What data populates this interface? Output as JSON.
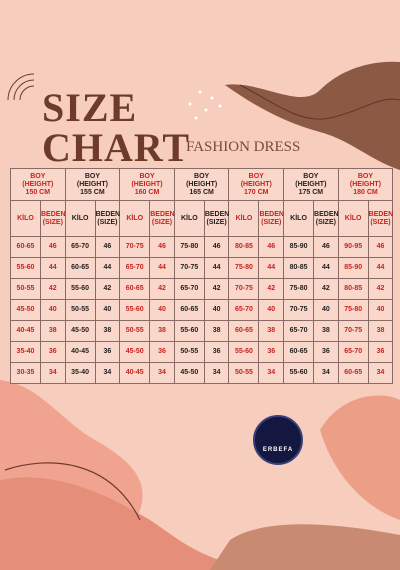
{
  "header": {
    "title_lines": [
      "SIZE",
      "CHART"
    ],
    "subtitle": "FASHION DRESS"
  },
  "table": {
    "groups": [
      {
        "label": "BOY",
        "sub": "(HEIGHT)",
        "height": "150 CM"
      },
      {
        "label": "BOY",
        "sub": "(HEIGHT)",
        "height": "155 CM"
      },
      {
        "label": "BOY",
        "sub": "(HEIGHT)",
        "height": "160 CM"
      },
      {
        "label": "BOY",
        "sub": "(HEIGHT)",
        "height": "165 CM"
      },
      {
        "label": "BOY",
        "sub": "(HEIGHT)",
        "height": "170 CM"
      },
      {
        "label": "BOY",
        "sub": "(HEIGHT)",
        "height": "175 CM"
      },
      {
        "label": "BOY",
        "sub": "(HEIGHT)",
        "height": "180 CM"
      }
    ],
    "columns": {
      "kilo": "KİLO",
      "beden": "BEDEN",
      "size": "(SIZE)"
    },
    "rows": [
      [
        [
          "60-65",
          46
        ],
        [
          "65-70",
          46
        ],
        [
          "70-75",
          46
        ],
        [
          "75-80",
          46
        ],
        [
          "80-85",
          46
        ],
        [
          "85-90",
          46
        ],
        [
          "90-95",
          46
        ]
      ],
      [
        [
          "55-60",
          44
        ],
        [
          "60-65",
          44
        ],
        [
          "65-70",
          44
        ],
        [
          "70-75",
          44
        ],
        [
          "75-80",
          44
        ],
        [
          "80-85",
          44
        ],
        [
          "85-90",
          44
        ]
      ],
      [
        [
          "50-55",
          42
        ],
        [
          "55-60",
          42
        ],
        [
          "60-65",
          42
        ],
        [
          "65-70",
          42
        ],
        [
          "70-75",
          42
        ],
        [
          "75-80",
          42
        ],
        [
          "80-85",
          42
        ]
      ],
      [
        [
          "45-50",
          40
        ],
        [
          "50-55",
          40
        ],
        [
          "55-60",
          40
        ],
        [
          "60-65",
          40
        ],
        [
          "65-70",
          40
        ],
        [
          "70-75",
          40
        ],
        [
          "75-80",
          40
        ]
      ],
      [
        [
          "40-45",
          38
        ],
        [
          "45-50",
          38
        ],
        [
          "50-55",
          38
        ],
        [
          "55-60",
          38
        ],
        [
          "60-65",
          38
        ],
        [
          "65-70",
          38
        ],
        [
          "70-75",
          38
        ]
      ],
      [
        [
          "35-40",
          36
        ],
        [
          "40-45",
          36
        ],
        [
          "45-50",
          36
        ],
        [
          "50-55",
          36
        ],
        [
          "55-60",
          36
        ],
        [
          "60-65",
          36
        ],
        [
          "65-70",
          36
        ]
      ],
      [
        [
          "30-35",
          34
        ],
        [
          "35-40",
          34
        ],
        [
          "40-45",
          34
        ],
        [
          "45-50",
          34
        ],
        [
          "50-55",
          34
        ],
        [
          "55-60",
          34
        ],
        [
          "60-65",
          34
        ]
      ]
    ]
  },
  "logo": {
    "text": "ERBEFA"
  }
}
